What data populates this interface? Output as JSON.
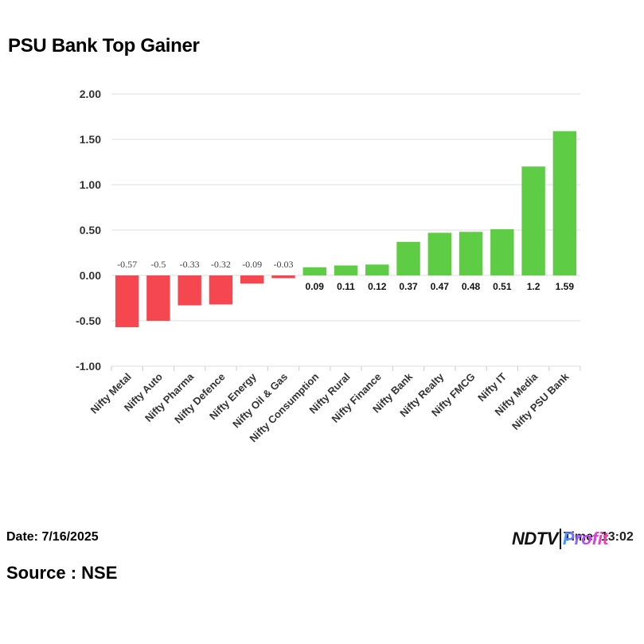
{
  "header": {
    "title": "PSU Bank Top Gainer"
  },
  "footer": {
    "date": "Date: 7/16/2025",
    "source": "Source : NSE",
    "time": "Time: 13:02",
    "logo_ndtv": "NDTV",
    "logo_profit": "Profit"
  },
  "colors": {
    "negative": "#f5474f",
    "positive": "#5ecc45",
    "grid": "#dcdcdc"
  },
  "chart_data": {
    "type": "bar",
    "title": "PSU Bank Top Gainer",
    "categories": [
      "Nifty Metal",
      "Nifty Auto",
      "Nifty Pharma",
      "Nifty Defence",
      "Nifty Energy",
      "Nifty Oil & Gas",
      "Nifty Consumption",
      "Nifty Rural",
      "Nifty Finance",
      "Nifty Bank",
      "Nifty Realty",
      "Nifty FMCG",
      "Nifty IT",
      "Nifty Media",
      "Nifty PSU Bank"
    ],
    "values": [
      -0.57,
      -0.5,
      -0.33,
      -0.32,
      -0.09,
      -0.03,
      0.09,
      0.11,
      0.12,
      0.37,
      0.47,
      0.48,
      0.51,
      1.2,
      1.59
    ],
    "data_labels": [
      "-0.57",
      "-0.5",
      "-0.33",
      "-0.32",
      "-0.09",
      "-0.03",
      "0.09",
      "0.11",
      "0.12",
      "0.37",
      "0.47",
      "0.48",
      "0.51",
      "1.2",
      "1.59"
    ],
    "ylim": [
      -1.0,
      2.0
    ],
    "yticks": [
      "2.00",
      "1.50",
      "1.00",
      "0.50",
      "0.00",
      "-0.50",
      "-1.00"
    ],
    "grid": true,
    "legend": "none"
  }
}
